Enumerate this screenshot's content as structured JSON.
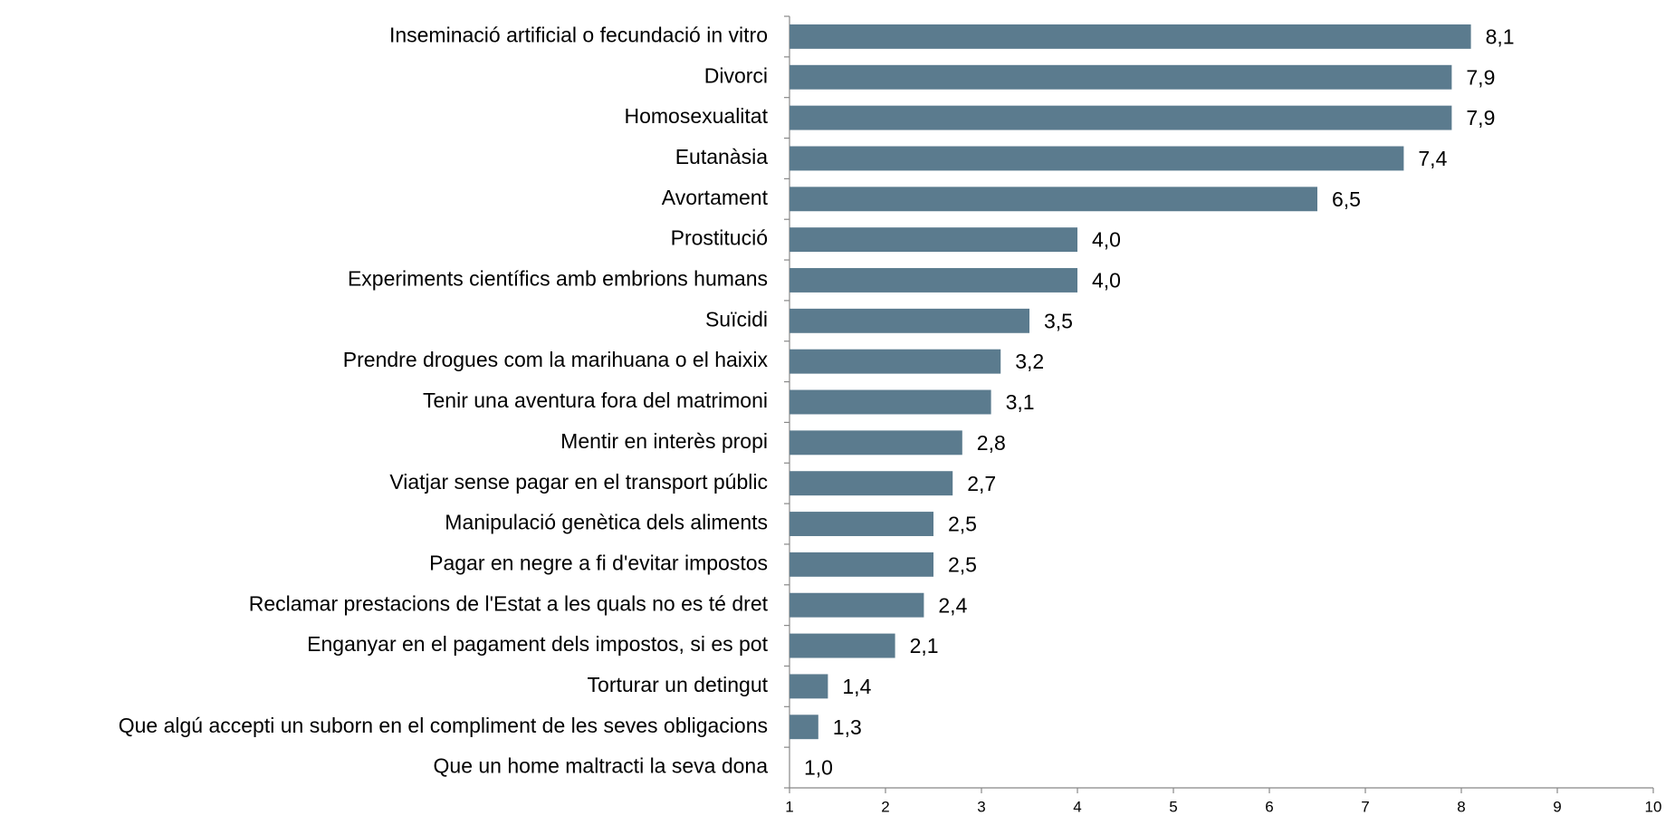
{
  "chart_data": {
    "type": "bar",
    "orientation": "horizontal",
    "categories": [
      "Inseminació artificial o fecundació in vitro",
      "Divorci",
      "Homosexualitat",
      "Eutanàsia",
      "Avortament",
      "Prostitució",
      "Experiments científics amb embrions humans",
      "Suïcidi",
      "Prendre drogues com la marihuana o el haixix",
      "Tenir una aventura fora del matrimoni",
      "Mentir en interès propi",
      "Viatjar sense pagar en el transport públic",
      "Manipulació genètica dels aliments",
      "Pagar en negre a fi d'evitar impostos",
      "Reclamar prestacions de l'Estat a les quals no es té dret",
      "Enganyar en el pagament dels impostos, si es pot",
      "Torturar un detingut",
      "Que algú accepti un suborn en el compliment de les seves obligacions",
      "Que un home maltracti la seva dona"
    ],
    "values": [
      8.1,
      7.9,
      7.9,
      7.4,
      6.5,
      4.0,
      4.0,
      3.5,
      3.2,
      3.1,
      2.8,
      2.7,
      2.5,
      2.5,
      2.4,
      2.1,
      1.4,
      1.3,
      1.0
    ],
    "value_labels": [
      "8,1",
      "7,9",
      "7,9",
      "7,4",
      "6,5",
      "4,0",
      "4,0",
      "3,5",
      "3,2",
      "3,1",
      "2,8",
      "2,7",
      "2,5",
      "2,5",
      "2,4",
      "2,1",
      "1,4",
      "1,3",
      "1,0"
    ],
    "color": "#5b7b8e",
    "xlim": [
      1,
      10
    ],
    "xticks": [
      1,
      2,
      3,
      4,
      5,
      6,
      7,
      8,
      9,
      10
    ],
    "grid": false
  }
}
